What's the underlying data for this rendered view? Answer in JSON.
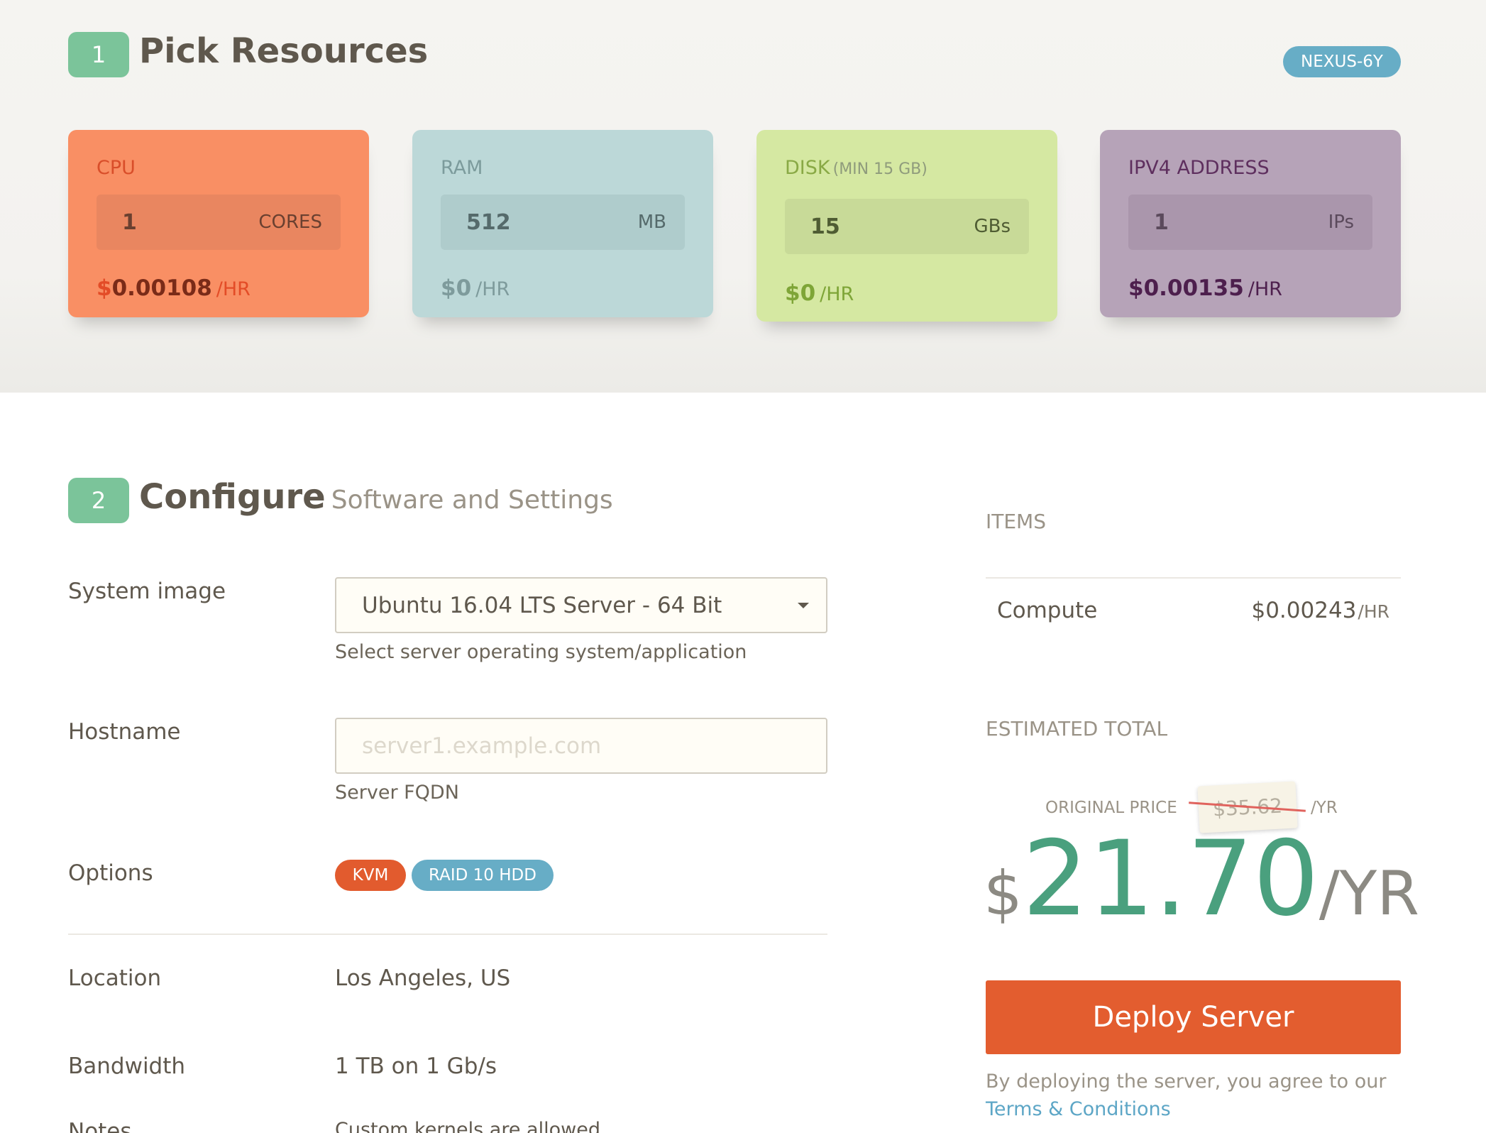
{
  "step1": {
    "number": "1",
    "title": "Pick Resources",
    "machine_badge": "NEXUS-6Y"
  },
  "resources": {
    "cpu": {
      "label": "CPU",
      "value": "1",
      "unit": "CORES",
      "price_symbol": "$",
      "price": "0.00108",
      "per": "/HR"
    },
    "ram": {
      "label": "RAM",
      "value": "512",
      "unit": "MB",
      "price": "$0",
      "per": "/HR"
    },
    "disk": {
      "label": "DISK",
      "min_note": "(MIN 15 GB)",
      "value": "15",
      "unit": "GBs",
      "price": "$0",
      "per": "/HR"
    },
    "ipv4": {
      "label": "IPV4 ADDRESS",
      "value": "1",
      "unit": "IPs",
      "price": "$0.00135",
      "per": "/HR"
    }
  },
  "step2": {
    "number": "2",
    "title": "Configure",
    "subtitle": "Software and Settings"
  },
  "form": {
    "system_image": {
      "label": "System image",
      "selected": "Ubuntu 16.04 LTS Server - 64 Bit",
      "help": "Select server operating system/application"
    },
    "hostname": {
      "label": "Hostname",
      "placeholder": "server1.example.com",
      "help": "Server FQDN"
    },
    "options": {
      "label": "Options",
      "tags": [
        "KVM",
        "RAID 10 HDD"
      ]
    },
    "location": {
      "label": "Location",
      "value": "Los Angeles, US"
    },
    "bandwidth": {
      "label": "Bandwidth",
      "value": "1 TB on 1 Gb/s"
    },
    "notes": {
      "label": "Notes",
      "value": "Custom kernels are allowed"
    }
  },
  "summary": {
    "items_label": "ITEMS",
    "compute_label": "Compute",
    "compute_price": "$0.00243",
    "compute_per": "/HR",
    "total_label": "ESTIMATED TOTAL",
    "original_label": "ORIGINAL PRICE",
    "original_price": "$35.62",
    "original_per": "/YR",
    "total_currency": "$",
    "total_amount": "21.70",
    "total_per": "/YR",
    "deploy_label": "Deploy Server",
    "terms_text": "By deploying the server, you agree to our",
    "terms_link": "Terms & Conditions"
  },
  "colors": {
    "accent": "#e35d2f",
    "step_badge": "#7bc49a",
    "info": "#67adc6",
    "total": "#4aa07e"
  }
}
